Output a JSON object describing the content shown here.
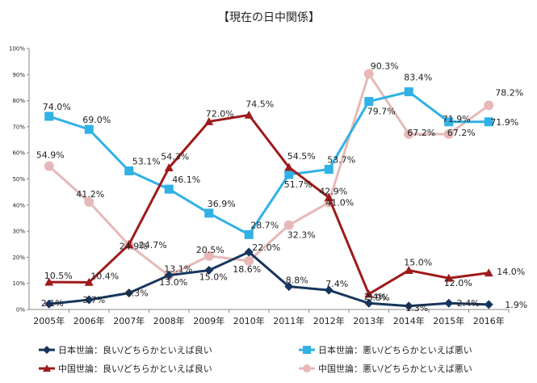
{
  "chart_data": {
    "type": "line",
    "title": "【現在の日中関係】",
    "categories": [
      "2005年",
      "2006年",
      "2007年",
      "2008年",
      "2009年",
      "2010年",
      "2011年",
      "2012年",
      "2013年",
      "2014年",
      "2015年",
      "2016年"
    ],
    "ylim": [
      0,
      100
    ],
    "y_ticks": [
      "0%",
      "10%",
      "20%",
      "30%",
      "40%",
      "50%",
      "60%",
      "70%",
      "80%",
      "90%",
      "100%"
    ],
    "grid": false,
    "legend_position": "bottom",
    "series": [
      {
        "name": "日本世論：良い/どちらかといえば良い",
        "color": "#17365d",
        "marker": "diamond",
        "values": [
          2.1,
          3.7,
          6.3,
          13.1,
          15.0,
          22.0,
          8.8,
          7.4,
          2.4,
          1.3,
          2.4,
          1.9
        ],
        "labels": [
          "2.1%",
          "3.7%",
          "6.3%",
          "13.1%",
          "15.0%",
          "22.0%",
          "8.8%",
          "7.4%",
          "2.4%",
          "1.3%",
          "2.4%",
          "1.9%"
        ]
      },
      {
        "name": "日本世論：悪い/どちらかといえば悪い",
        "color": "#31b1e5",
        "marker": "square",
        "values": [
          74.0,
          69.0,
          53.1,
          46.1,
          36.9,
          28.7,
          51.7,
          53.7,
          79.7,
          83.4,
          71.9,
          71.9
        ],
        "labels": [
          "74.0%",
          "69.0%",
          "53.1%",
          "46.1%",
          "36.9%",
          "28.7%",
          "51.7%",
          "53.7%",
          "79.7%",
          "83.4%",
          "71.9%",
          "71.9%"
        ]
      },
      {
        "name": "中国世論：良い/どちらかといえば良い",
        "color": "#9e1b1b",
        "marker": "triangle",
        "values": [
          10.5,
          10.4,
          24.9,
          54.3,
          72.0,
          74.5,
          54.5,
          42.9,
          5.9,
          15.0,
          12.0,
          14.0
        ],
        "labels": [
          "10.5%",
          "10.4%",
          "24.9%",
          "54.3%",
          "72.0%",
          "74.5%",
          "54.5%",
          "42.9%",
          "5.9%",
          "15.0%",
          "12.0%",
          "14.0%"
        ]
      },
      {
        "name": "中国世論：悪い/どちらかといえば悪い",
        "color": "#e6b9b8",
        "marker": "circle",
        "values": [
          54.9,
          41.2,
          24.7,
          13.0,
          20.5,
          18.6,
          32.3,
          41.0,
          90.3,
          67.2,
          67.2,
          78.2
        ],
        "labels": [
          "54.9%",
          "41.2%",
          "24.7%",
          "13.0%",
          "20.5%",
          "18.6%",
          "32.3%",
          "41.0%",
          "90.3%",
          "67.2%",
          "67.2%",
          "78.2%"
        ]
      }
    ]
  }
}
